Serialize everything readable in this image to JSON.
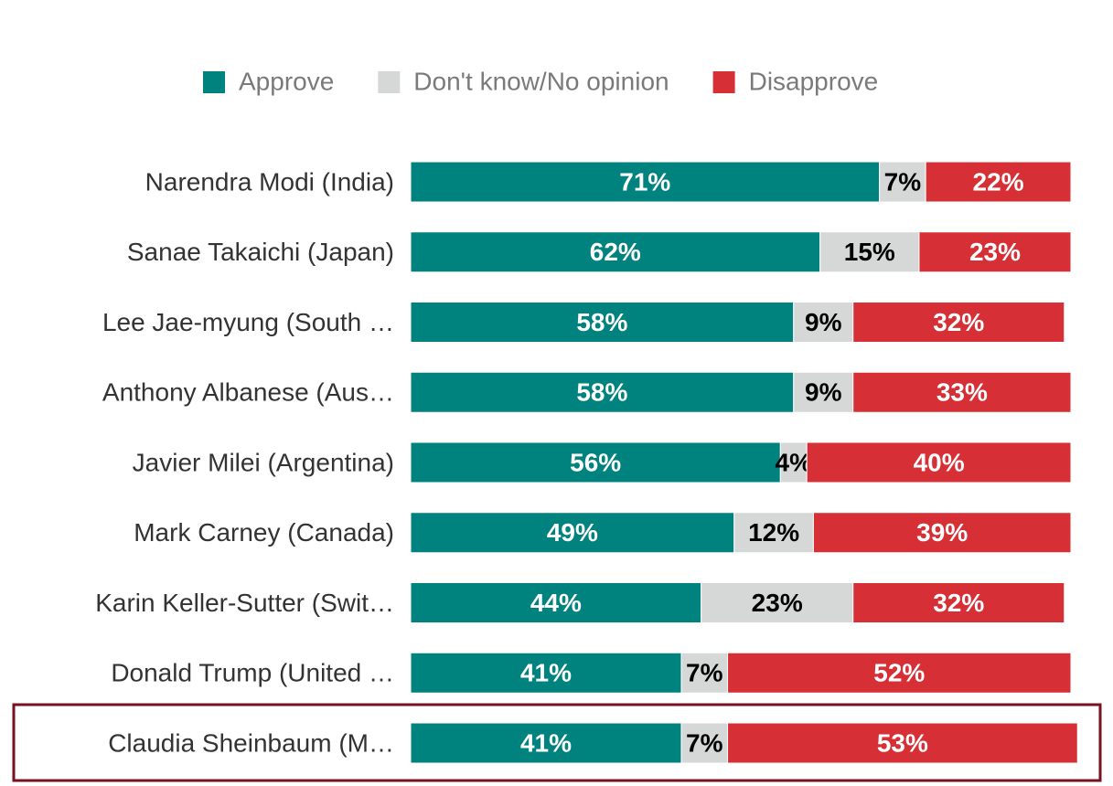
{
  "chart_data": {
    "type": "stacked-bar",
    "categories": [
      "Narendra Modi (India)",
      "Sanae Takaichi (Japan)",
      "Lee Jae-myung (South …",
      "Anthony Albanese (Aus…",
      "Javier Milei (Argentina)",
      "Mark Carney (Canada)",
      "Karin Keller-Sutter (Swit…",
      "Donald Trump (United …",
      "Claudia Sheinbaum (M…"
    ],
    "series": [
      {
        "name": "Approve",
        "color": "#00827f",
        "label_color": "#ffffff",
        "values": [
          71,
          62,
          58,
          58,
          56,
          49,
          44,
          41,
          41
        ],
        "value_labels": [
          "71%",
          "62%",
          "58%",
          "58%",
          "56%",
          "49%",
          "44%",
          "41%",
          "41%"
        ]
      },
      {
        "name": "Don't know/No opinion",
        "color": "#d6d8d8",
        "label_color": "#000000",
        "values": [
          7,
          15,
          9,
          9,
          4,
          12,
          23,
          7,
          7
        ],
        "value_labels": [
          "7%",
          "15%",
          "9%",
          "9%",
          "4%",
          "12%",
          "23%",
          "7%",
          "7%"
        ]
      },
      {
        "name": "Disapprove",
        "color": "#d62f35",
        "label_color": "#ffffff",
        "values": [
          22,
          23,
          32,
          33,
          40,
          39,
          32,
          52,
          53
        ],
        "value_labels": [
          "22%",
          "23%",
          "32%",
          "33%",
          "40%",
          "39%",
          "32%",
          "52%",
          "53%"
        ]
      }
    ],
    "xlim": [
      0,
      100
    ],
    "highlighted_index": 8,
    "highlight_color": "#7a1020"
  }
}
